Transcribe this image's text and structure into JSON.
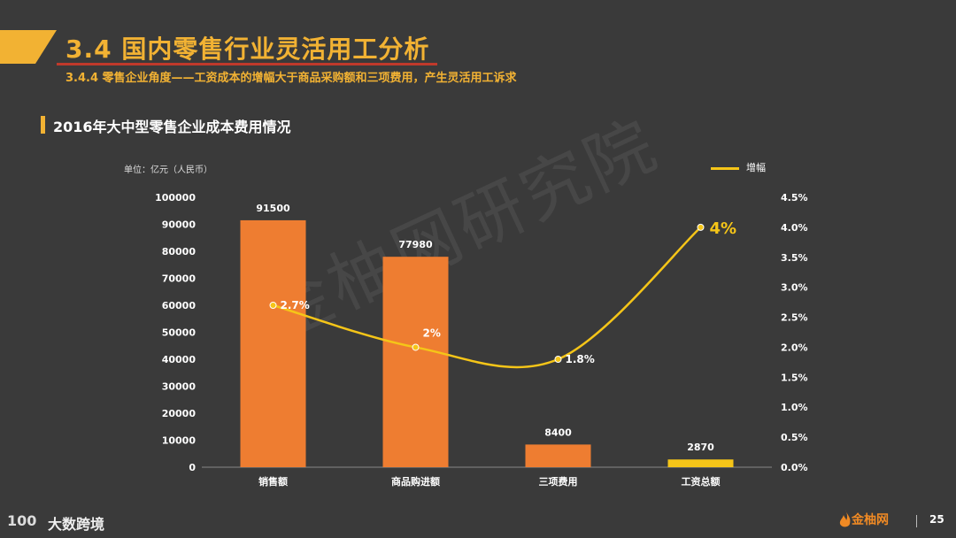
{
  "header": {
    "title": "3.4 国内零售行业灵活用工分析",
    "subtitle": "3.4.4 零售企业角度——工资成本的增幅大于商品采购额和三项费用，产生灵活用工诉求",
    "section_title": "2016年大中型零售企业成本费用情况"
  },
  "colors": {
    "accent": "#f2b233",
    "bar": "#ee7d31",
    "bar_highlight": "#f5c518",
    "line": "#f5c518",
    "background": "#3a3a3a"
  },
  "watermark": "金柚网研究院",
  "footer": {
    "left_logo_mark": "100",
    "left_logo_text": "大数跨境",
    "right_logo_text": "金柚网",
    "page_number": "25"
  },
  "chart_data": {
    "type": "bar",
    "unit_label": "单位：亿元（人民币）",
    "categories": [
      "销售额",
      "商品购进额",
      "三项费用",
      "工资总额"
    ],
    "series": [
      {
        "values": [
          91500,
          77980,
          8400,
          2870
        ],
        "value_labels": [
          "91500",
          "77980",
          "8400",
          "2870"
        ]
      },
      {
        "name": "增幅",
        "type": "line",
        "axis": "right",
        "values": [
          2.7,
          2.0,
          1.8,
          4.0
        ],
        "value_labels": [
          "2.7%",
          "2%",
          "1.8%",
          "4%"
        ]
      }
    ],
    "y_left": {
      "lim": [
        0,
        100000
      ],
      "ticks": [
        "0",
        "10000",
        "20000",
        "30000",
        "40000",
        "50000",
        "60000",
        "70000",
        "80000",
        "90000",
        "100000"
      ]
    },
    "y_right": {
      "lim": [
        0,
        4.5
      ],
      "ticks": [
        "0.0%",
        "0.5%",
        "1.0%",
        "1.5%",
        "2.0%",
        "2.5%",
        "3.0%",
        "3.5%",
        "4.0%",
        "4.5%"
      ]
    },
    "legend": {
      "position": "top-right",
      "label": "增幅"
    },
    "grid": false
  }
}
